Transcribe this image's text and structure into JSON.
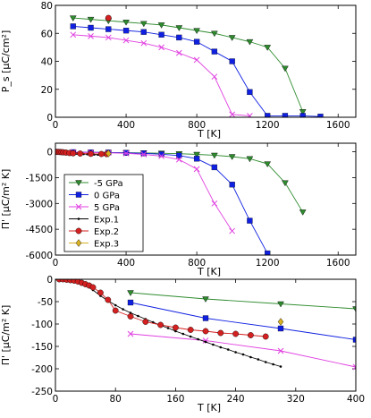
{
  "chart_data": [
    {
      "type": "line",
      "ylabel": "P_s [μC/cm²]",
      "xlabel": "T [K]",
      "xlim": [
        0,
        1700
      ],
      "ylim": [
        0,
        80
      ],
      "xticks": [
        0,
        400,
        800,
        1200,
        1600
      ],
      "yticks": [
        0,
        20,
        40,
        60,
        80
      ],
      "xtick_labels": [
        "0",
        "400",
        "800",
        "1200",
        "1600"
      ],
      "ytick_labels": [
        "0",
        "20",
        "40",
        "60",
        "80"
      ],
      "series": [
        {
          "name": "-5 GPa",
          "color": "#2e8b2e",
          "marker": "triangle-down",
          "x": [
            100,
            200,
            300,
            400,
            500,
            600,
            700,
            800,
            900,
            1000,
            1100,
            1200,
            1300,
            1400
          ],
          "y": [
            71,
            70,
            69,
            68,
            67,
            66,
            64,
            62,
            60,
            57,
            54,
            50,
            35,
            4
          ]
        },
        {
          "name": "0 GPa",
          "color": "#1020e0",
          "marker": "square",
          "x": [
            100,
            200,
            300,
            400,
            500,
            600,
            700,
            800,
            900,
            1000,
            1100,
            1200,
            1300,
            1400,
            1500
          ],
          "y": [
            65,
            64,
            63,
            62,
            61,
            59,
            57,
            54,
            47,
            40,
            18,
            1,
            1,
            1,
            0.5
          ]
        },
        {
          "name": "5 GPa",
          "color": "#e040e0",
          "marker": "x",
          "x": [
            100,
            200,
            300,
            400,
            500,
            600,
            700,
            800,
            900,
            1000,
            1100
          ],
          "y": [
            59,
            58,
            57,
            55,
            53,
            50,
            46,
            41,
            29,
            2,
            1
          ]
        },
        {
          "name": "Exp.2",
          "color": "#d42020",
          "marker": "circle",
          "x": [
            300
          ],
          "y": [
            71
          ]
        }
      ]
    },
    {
      "type": "line",
      "ylabel": "Π' [μC/m² K]",
      "xlabel": "T [K]",
      "xlim": [
        0,
        1700
      ],
      "ylim": [
        -6000,
        500
      ],
      "xticks": [
        0,
        400,
        800,
        1200,
        1600
      ],
      "yticks": [
        0,
        -1500,
        -3000,
        -4500,
        -6000
      ],
      "xtick_labels": [
        "0",
        "400",
        "800",
        "1200",
        "1600"
      ],
      "ytick_labels": [
        "0",
        "-1500",
        "-3000",
        "-4500",
        "-6000"
      ],
      "legend": "center-left",
      "series": [
        {
          "name": "-5 GPa",
          "color": "#2e8b2e",
          "marker": "triangle-down",
          "x": [
            100,
            200,
            300,
            400,
            500,
            600,
            700,
            800,
            900,
            1000,
            1100,
            1200,
            1300,
            1400
          ],
          "y": [
            -20,
            -30,
            -40,
            -50,
            -60,
            -80,
            -110,
            -150,
            -200,
            -280,
            -400,
            -700,
            -1800,
            -3500
          ]
        },
        {
          "name": "0 GPa",
          "color": "#1020e0",
          "marker": "square",
          "x": [
            100,
            200,
            300,
            400,
            500,
            600,
            700,
            800,
            900,
            1000,
            1100,
            1200
          ],
          "y": [
            -20,
            -30,
            -40,
            -60,
            -90,
            -140,
            -220,
            -400,
            -900,
            -1900,
            -4000,
            -5900
          ]
        },
        {
          "name": "5 GPa",
          "color": "#e040e0",
          "marker": "x",
          "x": [
            100,
            200,
            300,
            400,
            500,
            600,
            700,
            800,
            900,
            1000
          ],
          "y": [
            -20,
            -40,
            -60,
            -90,
            -150,
            -250,
            -450,
            -1000,
            -3000,
            -4600
          ]
        },
        {
          "name": "Exp.1",
          "color": "#000000",
          "marker": "dot",
          "x": [
            0,
            20,
            40,
            60,
            80,
            100,
            120,
            140,
            160,
            180,
            200,
            220,
            240,
            260,
            280,
            300
          ],
          "y": [
            0,
            -10,
            -30,
            -60,
            -80,
            -95,
            -105,
            -115,
            -125,
            -135,
            -145,
            -155,
            -165,
            -175,
            -185,
            -195
          ]
        },
        {
          "name": "Exp.2",
          "color": "#d42020",
          "marker": "circle",
          "x": [
            5,
            15,
            25,
            35,
            45,
            60,
            80,
            100,
            140,
            200,
            260,
            290
          ],
          "y": [
            -2,
            -5,
            -12,
            -20,
            -28,
            -45,
            -70,
            -85,
            -100,
            -115,
            -125,
            -130
          ]
        },
        {
          "name": "Exp.3",
          "color": "#d8b020",
          "marker": "diamond",
          "x": [
            300
          ],
          "y": [
            -95
          ]
        }
      ]
    },
    {
      "type": "line",
      "ylabel": "Π' [μC/m² K]",
      "xlabel": "T [K]",
      "xlim": [
        0,
        400
      ],
      "ylim": [
        -250,
        0
      ],
      "xticks": [
        0,
        80,
        160,
        240,
        320,
        400
      ],
      "yticks": [
        0,
        -50,
        -100,
        -150,
        -200,
        -250
      ],
      "xtick_labels": [
        "0",
        "80",
        "160",
        "240",
        "320",
        "400"
      ],
      "ytick_labels": [
        "0",
        "-50",
        "-100",
        "-150",
        "-200",
        "-250"
      ],
      "series": [
        {
          "name": "-5 GPa",
          "color": "#2e8b2e",
          "marker": "triangle-down",
          "x": [
            100,
            200,
            300,
            400
          ],
          "y": [
            -30,
            -44,
            -55,
            -66
          ]
        },
        {
          "name": "0 GPa",
          "color": "#1020e0",
          "marker": "square",
          "x": [
            100,
            200,
            300,
            400
          ],
          "y": [
            -52,
            -87,
            -110,
            -135
          ]
        },
        {
          "name": "5 GPa",
          "color": "#e040e0",
          "marker": "x",
          "x": [
            100,
            200,
            300,
            400
          ],
          "y": [
            -122,
            -137,
            -160,
            -196
          ]
        },
        {
          "name": "Exp.1",
          "color": "#000000",
          "marker": "dot",
          "x": [
            0,
            10,
            20,
            30,
            40,
            50,
            60,
            70,
            80,
            90,
            100,
            110,
            120,
            130,
            140,
            150,
            160,
            170,
            180,
            190,
            200,
            210,
            220,
            230,
            240,
            250,
            260,
            270,
            280,
            290,
            300
          ],
          "y": [
            0,
            -1,
            -3,
            -7,
            -14,
            -24,
            -37,
            -48,
            -58,
            -67,
            -75,
            -82,
            -89,
            -96,
            -103,
            -109,
            -116,
            -122,
            -128,
            -134,
            -140,
            -146,
            -152,
            -157,
            -163,
            -168,
            -174,
            -179,
            -185,
            -190,
            -195
          ]
        },
        {
          "name": "Exp.2",
          "color": "#d42020",
          "marker": "circle",
          "x": [
            5,
            10,
            15,
            20,
            25,
            30,
            35,
            40,
            45,
            50,
            60,
            70,
            80,
            100,
            120,
            140,
            160,
            180,
            200,
            220,
            240,
            260,
            280
          ],
          "y": [
            0,
            0,
            -1,
            -2,
            -3,
            -5,
            -8,
            -11,
            -14,
            -18,
            -30,
            -46,
            -70,
            -83,
            -95,
            -102,
            -108,
            -113,
            -116,
            -120,
            -122,
            -125,
            -128
          ]
        },
        {
          "name": "Exp.3",
          "color": "#d8b020",
          "marker": "diamond",
          "x": [
            300
          ],
          "y": [
            -95
          ]
        }
      ]
    }
  ]
}
